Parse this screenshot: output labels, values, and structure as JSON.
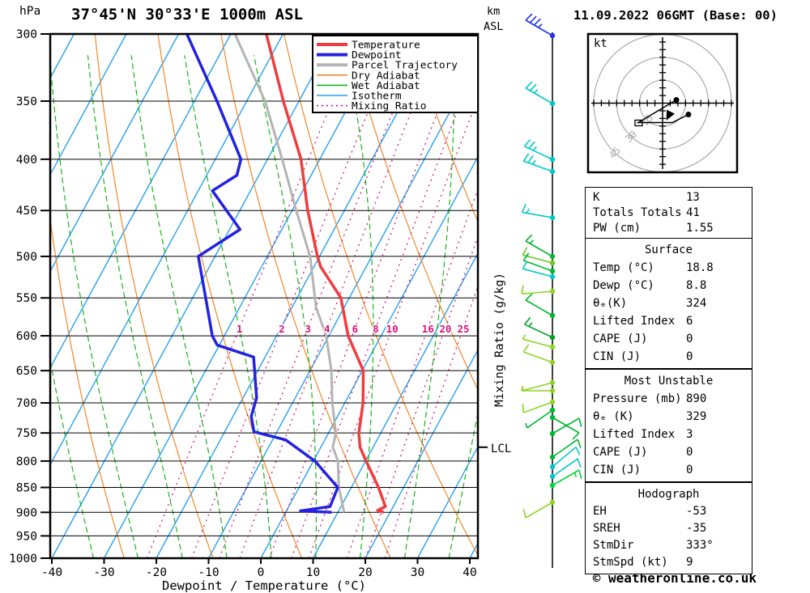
{
  "header": {
    "pressure_unit": "hPa",
    "station_title": "37°45'N 30°33'E 1000m ASL",
    "datetime_title": "11.09.2022 06GMT (Base: 00)",
    "altitude_axis_line1": "km",
    "altitude_axis_line2": "ASL"
  },
  "footer": {
    "copyright": "© weatheronline.co.uk"
  },
  "axes": {
    "xlabel": "Dewpoint / Temperature (°C)",
    "right_label": "Mixing Ratio (g/kg)",
    "lcl_label": "LCL",
    "pressure_ticks": [
      300,
      350,
      400,
      450,
      500,
      550,
      600,
      650,
      700,
      750,
      800,
      850,
      900,
      950,
      1000
    ],
    "temp_ticks": [
      -40,
      -30,
      -20,
      -10,
      0,
      10,
      20,
      30,
      40
    ]
  },
  "legend": {
    "items": [
      {
        "label": "Temperature",
        "color": "#f03c3c",
        "thick": true,
        "dash": ""
      },
      {
        "label": "Dewpoint",
        "color": "#2222e0",
        "thick": true,
        "dash": ""
      },
      {
        "label": "Parcel Trajectory",
        "color": "#b4b4b4",
        "thick": true,
        "dash": ""
      },
      {
        "label": "Dry Adiabat",
        "color": "#f0882c",
        "thick": false,
        "dash": ""
      },
      {
        "label": "Wet Adiabat",
        "color": "#18b418",
        "thick": false,
        "dash": ""
      },
      {
        "label": "Isotherm",
        "color": "#28a0f0",
        "thick": false,
        "dash": ""
      },
      {
        "label": "Mixing Ratio",
        "color": "#dc1478",
        "thick": false,
        "dash": "2 4"
      }
    ]
  },
  "hodograph_panel": {
    "unit_label": "kt"
  },
  "tables": {
    "indices": {
      "rows": [
        {
          "label": "K",
          "value": "13"
        },
        {
          "label": "Totals Totals",
          "value": "41"
        },
        {
          "label": "PW (cm)",
          "value": "1.55"
        }
      ]
    },
    "surface": {
      "title": "Surface",
      "rows": [
        {
          "label": "Temp (°C)",
          "value": "18.8"
        },
        {
          "label": "Dewp (°C)",
          "value": "8.8"
        },
        {
          "label": "θₑ(K)",
          "value": "324"
        },
        {
          "label": "Lifted Index",
          "value": "6"
        },
        {
          "label": "CAPE (J)",
          "value": "0"
        },
        {
          "label": "CIN (J)",
          "value": "0"
        }
      ]
    },
    "most_unstable": {
      "title": "Most Unstable",
      "rows": [
        {
          "label": "Pressure (mb)",
          "value": "890"
        },
        {
          "label": "θₑ (K)",
          "value": "329"
        },
        {
          "label": "Lifted Index",
          "value": "3"
        },
        {
          "label": "CAPE (J)",
          "value": "0"
        },
        {
          "label": "CIN (J)",
          "value": "0"
        }
      ]
    },
    "hodograph": {
      "title": "Hodograph",
      "rows": [
        {
          "label": "EH",
          "value": "-53"
        },
        {
          "label": "SREH",
          "value": "-35"
        },
        {
          "label": "StmDir",
          "value": "333°"
        },
        {
          "label": "StmSpd (kt)",
          "value": "9"
        }
      ]
    }
  },
  "chart_data": {
    "type": "line",
    "variant": "skew-t-log-p",
    "title": "37°45'N 30°33'E 1000m ASL",
    "xlabel": "Dewpoint / Temperature (°C)",
    "ylabel": "hPa",
    "xlim": [
      -40,
      40
    ],
    "pressure_range": [
      300,
      1000
    ],
    "grid": true,
    "legend_position": "top-right",
    "colors": {
      "temperature": "#f03c3c",
      "dewpoint": "#2222e0",
      "parcel": "#b4b4b4",
      "dry_adiabat": "#f0882c",
      "wet_adiabat": "#18b418",
      "isotherm": "#28a0f0",
      "mixing_ratio": "#dc1478",
      "grid": "#000000"
    },
    "series": [
      {
        "name": "Temperature",
        "points_p_t": [
          [
            300,
            -53.2
          ],
          [
            350,
            -43.0
          ],
          [
            400,
            -33.6
          ],
          [
            450,
            -27.0
          ],
          [
            500,
            -20.4
          ],
          [
            512,
            -18.7
          ],
          [
            550,
            -11.6
          ],
          [
            600,
            -6.3
          ],
          [
            650,
            0.2
          ],
          [
            700,
            3.5
          ],
          [
            750,
            5.8
          ],
          [
            775,
            7.5
          ],
          [
            800,
            10.1
          ],
          [
            850,
            15.2
          ],
          [
            888,
            18.5
          ],
          [
            896,
            17.4
          ],
          [
            900,
            18.8
          ]
        ]
      },
      {
        "name": "Dewpoint",
        "points_p_t": [
          [
            300,
            -68.4
          ],
          [
            350,
            -55.7
          ],
          [
            400,
            -45.1
          ],
          [
            415,
            -44.2
          ],
          [
            430,
            -47.3
          ],
          [
            470,
            -38.0
          ],
          [
            500,
            -43.2
          ],
          [
            550,
            -37.5
          ],
          [
            600,
            -32.3
          ],
          [
            613,
            -30.4
          ],
          [
            630,
            -22.2
          ],
          [
            692,
            -17.4
          ],
          [
            722,
            -16.5
          ],
          [
            748,
            -14.4
          ],
          [
            762,
            -7.5
          ],
          [
            800,
            0.3
          ],
          [
            850,
            7.4
          ],
          [
            888,
            7.9
          ],
          [
            897,
            2.7
          ],
          [
            900,
            8.8
          ]
        ]
      },
      {
        "name": "Parcel Trajectory",
        "points_p_t": [
          [
            300,
            -59.2
          ],
          [
            350,
            -46.5
          ],
          [
            400,
            -37.2
          ],
          [
            450,
            -29.2
          ],
          [
            500,
            -21.8
          ],
          [
            562,
            -15.4
          ],
          [
            600,
            -10.5
          ],
          [
            650,
            -5.9
          ],
          [
            700,
            -2.4
          ],
          [
            750,
            1.4
          ],
          [
            775,
            2.3
          ],
          [
            800,
            4.7
          ],
          [
            850,
            7.6
          ],
          [
            900,
            11.2
          ]
        ]
      }
    ],
    "lcl_pressure": 775,
    "mixing_ratio_values": [
      1,
      2,
      3,
      4,
      6,
      8,
      10,
      16,
      20,
      25
    ],
    "isotherms_c": {
      "start": -110,
      "end": 40,
      "step": 10
    },
    "dry_adiabats_theta_k": {
      "start": 230,
      "end": 450,
      "step": 17
    },
    "wet_adiabats_thetaw_c": [
      -40.5,
      -32,
      -23.5,
      -15,
      -6.5,
      2,
      10.5,
      19,
      27.5,
      36,
      44.5
    ],
    "wind_barbs": [
      {
        "y": 44,
        "color": "#2233ee",
        "dir": 300,
        "speed": 35
      },
      {
        "y": 128,
        "color": "#00c8c8",
        "dir": 300,
        "speed": 25
      },
      {
        "y": 197,
        "color": "#00c8c8",
        "dir": 295,
        "speed": 25
      },
      {
        "y": 212,
        "color": "#00c8c8",
        "dir": 290,
        "speed": 25
      },
      {
        "y": 269,
        "color": "#00c8c8",
        "dir": 280,
        "speed": 15
      },
      {
        "y": 317,
        "color": "#00b830",
        "dir": 300,
        "speed": 15
      },
      {
        "y": 325,
        "color": "#6cc828",
        "dir": 285,
        "speed": 10
      },
      {
        "y": 335,
        "color": "#00b830",
        "dir": 290,
        "speed": 10
      },
      {
        "y": 342,
        "color": "#00c8c8",
        "dir": 285,
        "speed": 10
      },
      {
        "y": 360,
        "color": "#8ed427",
        "dir": 265,
        "speed": 10
      },
      {
        "y": 390,
        "color": "#00b830",
        "dir": 300,
        "speed": 10
      },
      {
        "y": 417,
        "color": "#00a028",
        "dir": 295,
        "speed": 15
      },
      {
        "y": 429,
        "color": "#8ed427",
        "dir": 285,
        "speed": 7
      },
      {
        "y": 448,
        "color": "#8ed427",
        "dir": 290,
        "speed": 10
      },
      {
        "y": 473,
        "color": "#8ed427",
        "dir": 255,
        "speed": 7
      },
      {
        "y": 483,
        "color": "#8ed427",
        "dir": 270,
        "speed": 7
      },
      {
        "y": 497,
        "color": "#8ed427",
        "dir": 250,
        "speed": 10
      },
      {
        "y": 507,
        "color": "#00b830",
        "dir": 235,
        "speed": 7
      },
      {
        "y": 516,
        "color": "#00b830",
        "dir": 120,
        "speed": 10
      },
      {
        "y": 536,
        "color": "#00b830",
        "dir": 60,
        "speed": 10
      },
      {
        "y": 565,
        "color": "#00b830",
        "dir": 55,
        "speed": 10
      },
      {
        "y": 577,
        "color": "#00c8c8",
        "dir": 50,
        "speed": 10
      },
      {
        "y": 589,
        "color": "#00c8c8",
        "dir": 55,
        "speed": 10
      },
      {
        "y": 600,
        "color": "#00d83c",
        "dir": 60,
        "speed": 15
      },
      {
        "y": 621,
        "color": "#8ed427",
        "dir": 240,
        "speed": 10
      }
    ],
    "hodograph": {
      "rings_kt": [
        15,
        30,
        45
      ],
      "tick_step_kt": 5,
      "trace_kt": [
        [
          9.0,
          2.1
        ],
        [
          -15.9,
          -12.7
        ],
        [
          6.4,
          -12.7
        ],
        [
          16.9,
          -7.4
        ]
      ],
      "dots_kt": [
        [
          9.0,
          2.1
        ],
        [
          16.9,
          -7.4
        ]
      ],
      "square_kt": [
        -15.9,
        -12.7
      ],
      "storm_motion_kt": [
        4.1,
        -8.0
      ],
      "storm_dir_deg": 333,
      "storm_speed_kt": 9
    }
  }
}
